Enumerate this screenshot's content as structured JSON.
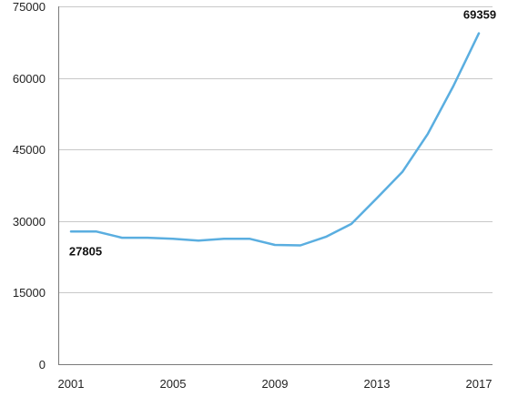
{
  "chart_data": {
    "type": "line",
    "title": "",
    "xlabel": "",
    "ylabel": "",
    "x": [
      2001,
      2002,
      2003,
      2004,
      2005,
      2006,
      2007,
      2008,
      2009,
      2010,
      2011,
      2012,
      2013,
      2014,
      2015,
      2016,
      2017
    ],
    "series": [
      {
        "values": [
          27805,
          27800,
          26500,
          26500,
          26300,
          25900,
          26300,
          26300,
          25000,
          24900,
          26700,
          29400,
          34800,
          40300,
          48300,
          58300,
          69359
        ],
        "color": "#5aaee0"
      }
    ],
    "x_ticks": [
      "2001",
      "2005",
      "2009",
      "2013",
      "2017"
    ],
    "y_ticks": [
      "0",
      "15000",
      "30000",
      "45000",
      "60000",
      "75000"
    ],
    "ylim": [
      0,
      75000
    ],
    "xlim": [
      2001,
      2017
    ],
    "grid": true,
    "data_labels": [
      {
        "x": 2001,
        "text": "27805",
        "placement": "below"
      },
      {
        "x": 2017,
        "text": "69359",
        "placement": "above"
      }
    ]
  }
}
